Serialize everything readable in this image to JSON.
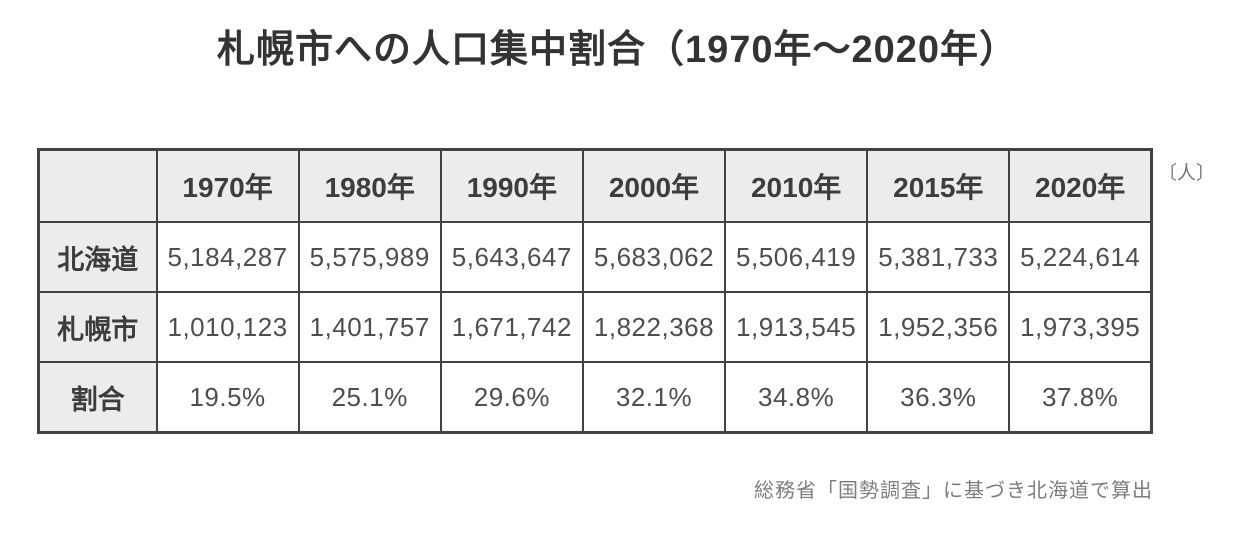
{
  "title": "札幌市への人口集中割合（1970年〜2020年）",
  "unit_label": "〔人〕",
  "source_note": "総務省「国勢調査」に基づき北海道で算出",
  "colors": {
    "border": "#424242",
    "header_background": "#ececec",
    "heading_text": "#3d3d3d",
    "number_text": "#4e4e4e",
    "muted_text": "#7d7d7d",
    "page_background": "#ffffff"
  },
  "table": {
    "corner": "",
    "columns": [
      "1970年",
      "1980年",
      "1990年",
      "2000年",
      "2010年",
      "2015年",
      "2020年"
    ],
    "rows": [
      {
        "label": "北海道",
        "values": [
          "5,184,287",
          "5,575,989",
          "5,643,647",
          "5,683,062",
          "5,506,419",
          "5,381,733",
          "5,224,614"
        ]
      },
      {
        "label": "札幌市",
        "values": [
          "1,010,123",
          "1,401,757",
          "1,671,742",
          "1,822,368",
          "1,913,545",
          "1,952,356",
          "1,973,395"
        ]
      },
      {
        "label": "割合",
        "values": [
          "19.5%",
          "25.1%",
          "29.6%",
          "32.1%",
          "34.8%",
          "36.3%",
          "37.8%"
        ]
      }
    ]
  },
  "chart_data": {
    "type": "table",
    "title": "札幌市への人口集中割合（1970年〜2020年）",
    "unit": "人",
    "categories": [
      1970,
      1980,
      1990,
      2000,
      2010,
      2015,
      2020
    ],
    "series": [
      {
        "name": "北海道",
        "values": [
          5184287,
          5575989,
          5643647,
          5683062,
          5506419,
          5381733,
          5224614
        ]
      },
      {
        "name": "札幌市",
        "values": [
          1010123,
          1401757,
          1671742,
          1822368,
          1913545,
          1952356,
          1973395
        ]
      },
      {
        "name": "割合(%)",
        "values": [
          19.5,
          25.1,
          29.6,
          32.1,
          34.8,
          36.3,
          37.8
        ]
      }
    ],
    "source": "総務省「国勢調査」に基づき北海道で算出"
  }
}
